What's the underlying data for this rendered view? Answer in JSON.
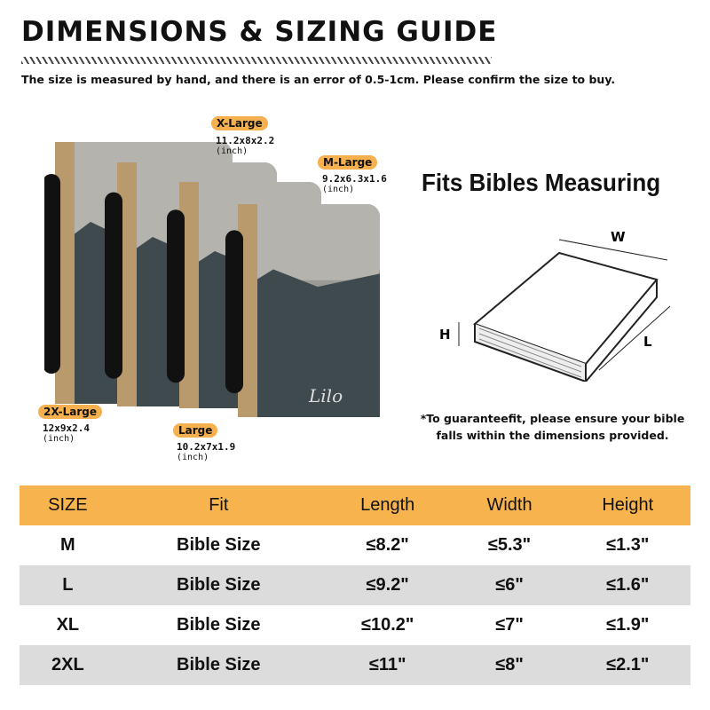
{
  "header": {
    "title": "DIMENSIONS & SIZING GUIDE",
    "subtitle": "The size is measured by hand, and there is an error of 0.5-1cm. Please confirm the size to buy."
  },
  "sizes": [
    {
      "label": "X-Large",
      "dims": "11.2x8x2.2",
      "unit": "(inch)"
    },
    {
      "label": "M-Large",
      "dims": "9.2x6.3x1.6",
      "unit": "(inch)"
    },
    {
      "label": "2X-Large",
      "dims": "12x9x2.4",
      "unit": "(inch)"
    },
    {
      "label": "Large",
      "dims": "10.2x7x1.9",
      "unit": "(inch)"
    }
  ],
  "cover_text": "Lilo",
  "fits": {
    "title": "Fits Bibles Measuring",
    "w": "W",
    "h": "H",
    "l": "L",
    "note": "*To guaranteefit, please ensure your bible falls within the dimensions provided."
  },
  "colors": {
    "accent": "#f7b34e",
    "row_alt": "#dcdcdc"
  },
  "table": {
    "headers": [
      "SIZE",
      "Fit",
      "Length",
      "Width",
      "Height"
    ],
    "rows": [
      [
        "M",
        "Bible Size",
        "≤8.2\"",
        "≤5.3\"",
        "≤1.3\""
      ],
      [
        "L",
        "Bible Size",
        "≤9.2\"",
        "≤6\"",
        "≤1.6\""
      ],
      [
        "XL",
        "Bible Size",
        "≤10.2\"",
        "≤7\"",
        "≤1.9\""
      ],
      [
        "2XL",
        "Bible Size",
        "≤11\"",
        "≤8\"",
        "≤2.1\""
      ]
    ]
  }
}
